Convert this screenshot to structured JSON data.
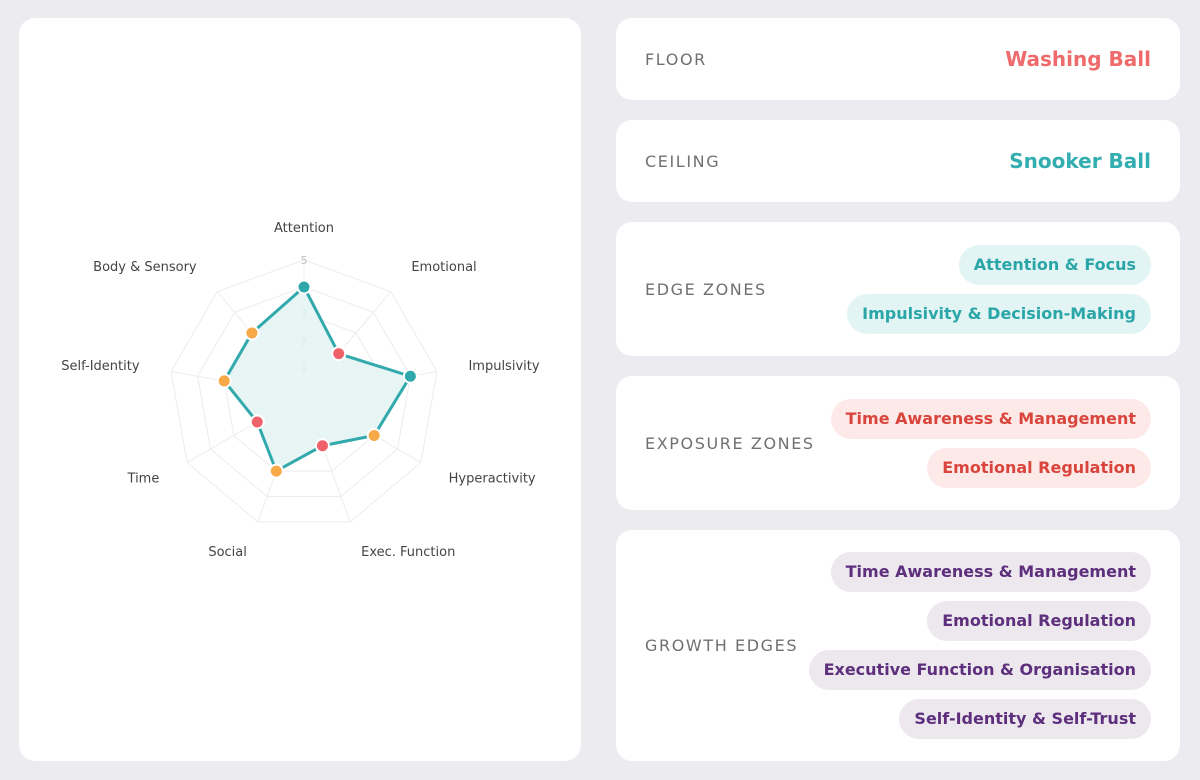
{
  "chart_data": {
    "type": "radar",
    "axes": [
      "Attention",
      "Emotional",
      "Impulsivity",
      "Hyperactivity",
      "Exec. Function",
      "Social",
      "Time",
      "Self-Identity",
      "Body & Sensory"
    ],
    "values": [
      4,
      2,
      4,
      3,
      2,
      3,
      2,
      3,
      3
    ],
    "point_colors": [
      "#2ea8ab",
      "#f0626a",
      "#2ea8ab",
      "#f7a947",
      "#f0626a",
      "#f7a947",
      "#f0626a",
      "#f7a947",
      "#f7a947"
    ],
    "range": [
      0,
      5
    ],
    "ticks": [
      "1",
      "2",
      "3",
      "4",
      "5"
    ],
    "line_color": "#32a9ac",
    "fill_color": "#e3f3f3",
    "grid": true
  },
  "floor": {
    "label": "FLOOR",
    "value": "Washing Ball",
    "color": "#ee6a6b"
  },
  "ceiling": {
    "label": "CEILING",
    "value": "Snooker Ball",
    "color": "#32adb0"
  },
  "edge_zones": {
    "label": "EDGE ZONES",
    "tags": [
      "Attention & Focus",
      "Impulsivity & Decision-Making"
    ]
  },
  "exposure_zones": {
    "label": "EXPOSURE ZONES",
    "tags": [
      "Time Awareness & Management",
      "Emotional Regulation"
    ]
  },
  "growth_edges": {
    "label": "GROWTH EDGES",
    "tags": [
      "Time Awareness & Management",
      "Emotional Regulation",
      "Executive Function & Organisation",
      "Self-Identity & Self-Trust"
    ]
  }
}
